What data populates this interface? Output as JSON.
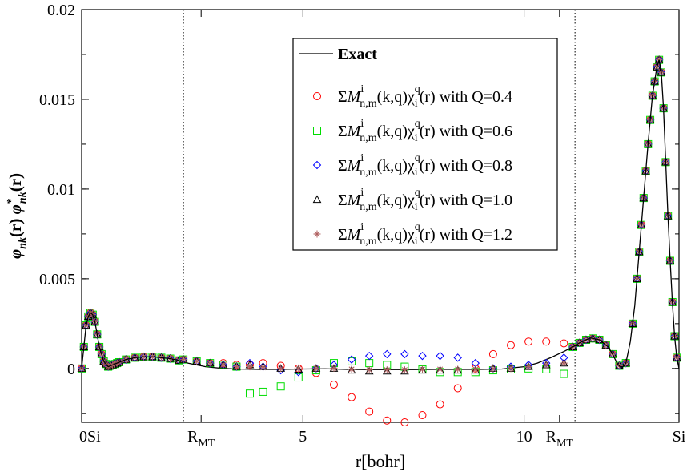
{
  "chart_data": {
    "type": "line",
    "xlabel": "r[bohr]",
    "ylabel": "φ_nk(r) φ*_nk(r)",
    "xlim": [
      0,
      13.5
    ],
    "ylim": [
      -0.003,
      0.02
    ],
    "yticks": [
      "-0.003",
      "0",
      "0.005",
      "0.01",
      "0.015",
      "0.02"
    ],
    "ytick_labels": [
      "",
      "0",
      "0.005",
      "0.01",
      "0.015",
      "0.02"
    ],
    "xticks": [
      {
        "value": 0,
        "label": "0Si"
      },
      {
        "value": 2.7,
        "label": "R",
        "sub": "MT"
      },
      {
        "value": 5,
        "label": "5"
      },
      {
        "value": 10,
        "label": "10"
      },
      {
        "value": 10.8,
        "label": "R",
        "sub": "MT"
      },
      {
        "value": 13.5,
        "label": "Si"
      }
    ],
    "vlines": [
      2.3,
      11.15
    ],
    "legend_position": "upper-right",
    "legend": [
      {
        "label": "Exact",
        "marker": "line",
        "color": "#000000"
      },
      {
        "label": "ΣM(k,q)χ(r) with Q=0.4",
        "marker": "circle",
        "color": "#ff0000",
        "sup1": "i",
        "sub1": "n,m",
        "sup2": "q",
        "sub2": "i",
        "q": "0.4"
      },
      {
        "label": "ΣM(k,q)χ(r) with Q=0.6",
        "marker": "square",
        "color": "#00dd00",
        "sup1": "i",
        "sub1": "n,m",
        "sup2": "q",
        "sub2": "i",
        "q": "0.6"
      },
      {
        "label": "ΣM(k,q)χ(r) with Q=0.8",
        "marker": "diamond",
        "color": "#0000ff",
        "sup1": "i",
        "sub1": "n,m",
        "sup2": "q",
        "sub2": "i",
        "q": "0.8"
      },
      {
        "label": "ΣM(k,q)χ(r) with Q=1.0",
        "marker": "triangle",
        "color": "#000000",
        "sup1": "i",
        "sub1": "n,m",
        "sup2": "q",
        "sub2": "i",
        "q": "1.0"
      },
      {
        "label": "ΣM(k,q)χ(r) with Q=1.2",
        "marker": "star",
        "color": "#b06060",
        "sup1": "i",
        "sub1": "n,m",
        "sup2": "q",
        "sub2": "i",
        "q": "1.2"
      }
    ],
    "exact_curve": {
      "x": [
        0,
        0.05,
        0.1,
        0.15,
        0.2,
        0.25,
        0.3,
        0.35,
        0.4,
        0.5,
        0.6,
        0.7,
        0.8,
        0.9,
        1.0,
        1.1,
        1.2,
        1.4,
        1.6,
        1.8,
        2.0,
        2.2,
        2.4,
        2.6,
        2.8,
        3.0,
        3.2,
        3.5,
        4.0,
        4.5,
        5.0,
        5.5,
        6.0,
        6.5,
        7.0,
        7.5,
        8.0,
        8.5,
        9.0,
        9.5,
        10.0,
        10.3,
        10.6,
        10.9,
        11.1,
        11.3,
        11.5,
        11.7,
        11.9,
        12.0,
        12.1,
        12.2,
        12.3,
        12.4,
        12.5,
        12.6,
        12.7,
        12.8,
        12.9,
        13.0,
        13.05,
        13.1,
        13.15,
        13.2,
        13.25,
        13.3,
        13.35,
        13.4,
        13.45,
        13.5
      ],
      "y": [
        0,
        0.0012,
        0.0024,
        0.0029,
        0.0031,
        0.003,
        0.0026,
        0.0019,
        0.0012,
        0.0004,
        0.0001,
        0.0002,
        0.0003,
        0.0004,
        0.0005,
        0.00055,
        0.0006,
        0.00065,
        0.00065,
        0.0006,
        0.00055,
        0.00045,
        0.0003,
        0.0002,
        0.0001,
        5e-05,
        0.0,
        -3e-05,
        -5e-05,
        -5e-05,
        -3e-05,
        -2e-05,
        -5e-05,
        -6e-05,
        -6e-05,
        -6e-05,
        -5e-05,
        -5e-05,
        -5e-05,
        -3e-05,
        0.0001,
        0.0003,
        0.0006,
        0.00095,
        0.0012,
        0.0015,
        0.0017,
        0.0016,
        0.0012,
        0.0008,
        0.0003,
        0.0,
        0.0003,
        0.0015,
        0.0035,
        0.0065,
        0.0095,
        0.0125,
        0.0152,
        0.0168,
        0.0172,
        0.0165,
        0.0145,
        0.0115,
        0.0085,
        0.006,
        0.0037,
        0.0018,
        0.0006,
        0
      ]
    },
    "series": [
      {
        "name": "Q=0.4",
        "marker": "circle",
        "color": "#ff0000",
        "x": [
          2.3,
          2.6,
          2.9,
          3.2,
          3.5,
          3.8,
          4.1,
          4.5,
          4.9,
          5.3,
          5.7,
          6.1,
          6.5,
          6.9,
          7.3,
          7.7,
          8.1,
          8.5,
          8.9,
          9.3,
          9.7,
          10.1,
          10.5,
          10.9
        ],
        "y": [
          0.0005,
          0.0004,
          0.0003,
          0.0003,
          0.0002,
          0.0002,
          0.0003,
          0.00015,
          0.0,
          -0.00025,
          -0.0009,
          -0.0016,
          -0.0024,
          -0.0029,
          -0.003,
          -0.0026,
          -0.002,
          -0.0011,
          0.0,
          0.0008,
          0.0013,
          0.0015,
          0.0015,
          0.0014
        ]
      },
      {
        "name": "Q=0.6",
        "marker": "square",
        "color": "#00dd00",
        "x": [
          2.3,
          2.6,
          2.9,
          3.2,
          3.5,
          3.8,
          4.1,
          4.5,
          4.9,
          5.3,
          5.7,
          6.1,
          6.5,
          6.9,
          7.3,
          7.7,
          8.1,
          8.5,
          8.9,
          9.3,
          9.7,
          10.1,
          10.5,
          10.9
        ],
        "y": [
          0.0005,
          0.0004,
          0.0003,
          0.0002,
          0.0001,
          -0.0014,
          -0.0013,
          -0.001,
          -0.0005,
          -0.0001,
          0.0003,
          0.0004,
          0.0003,
          0.0002,
          0.0001,
          -5e-05,
          -0.0002,
          -0.0002,
          -0.0002,
          -0.0001,
          -5e-05,
          0.0,
          -5e-05,
          -0.0003
        ]
      },
      {
        "name": "Q=0.8",
        "marker": "diamond",
        "color": "#0000ff",
        "x": [
          2.3,
          2.6,
          2.9,
          3.2,
          3.5,
          3.8,
          4.1,
          4.5,
          4.9,
          5.3,
          5.7,
          6.1,
          6.5,
          6.9,
          7.3,
          7.7,
          8.1,
          8.5,
          8.9,
          9.3,
          9.7,
          10.1,
          10.5,
          10.9
        ],
        "y": [
          0.0005,
          0.0004,
          0.0003,
          0.0002,
          0.0001,
          0.0003,
          0.0001,
          -0.0001,
          -0.0002,
          0.0,
          0.0002,
          0.0005,
          0.0007,
          0.0008,
          0.0008,
          0.0007,
          0.0007,
          0.0006,
          0.0003,
          0.0,
          0.0001,
          0.0002,
          0.0003,
          0.0006
        ]
      },
      {
        "name": "Q=1.0",
        "marker": "triangle",
        "color": "#000000",
        "x": [
          2.3,
          2.6,
          2.9,
          3.2,
          3.5,
          3.8,
          4.1,
          4.5,
          4.9,
          5.3,
          5.7,
          6.1,
          6.5,
          6.9,
          7.3,
          7.7,
          8.1,
          8.5,
          8.9,
          9.3,
          9.7,
          10.1,
          10.5,
          10.9
        ],
        "y": [
          0.0005,
          0.0004,
          0.0003,
          0.0002,
          0.0001,
          0.0002,
          0.0001,
          0.0,
          -5e-05,
          0.0,
          0.0,
          -0.0001,
          -0.00015,
          -0.00015,
          -0.00015,
          -0.0001,
          -0.0001,
          -0.0001,
          -0.0001,
          0.0,
          0.0,
          0.0001,
          0.0002,
          0.0003
        ]
      },
      {
        "name": "Q=1.2",
        "marker": "star",
        "color": "#b06060",
        "x": [
          2.3,
          2.6,
          2.9,
          3.2,
          3.5,
          3.8,
          4.1,
          4.5,
          4.9,
          5.3,
          5.7,
          6.1,
          6.5,
          6.9,
          7.3,
          7.7,
          8.1,
          8.5,
          8.9,
          9.3,
          9.7,
          10.1,
          10.5,
          10.9
        ],
        "y": [
          0.0005,
          0.0004,
          0.0003,
          0.0002,
          0.0001,
          0.0001,
          5e-05,
          0.0,
          -2e-05,
          0.0,
          2e-05,
          -5e-05,
          -8e-05,
          -8e-05,
          -8e-05,
          -5e-05,
          -5e-05,
          -5e-05,
          -5e-05,
          -2e-05,
          0.0,
          0.0001,
          0.0002,
          0.0003
        ]
      }
    ]
  }
}
